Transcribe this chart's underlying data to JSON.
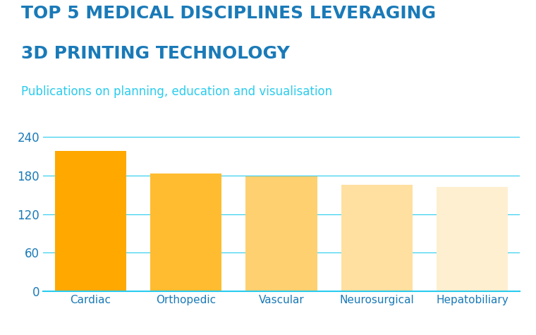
{
  "title_line1": "TOP 5 MEDICAL DISCIPLINES LEVERAGING",
  "title_line2": "3D PRINTING TECHNOLOGY",
  "subtitle": "Publications on planning, education and visualisation",
  "categories": [
    "Cardiac",
    "Orthopedic",
    "Vascular",
    "Neurosurgical",
    "Hepatobiliary"
  ],
  "values": [
    218,
    183,
    179,
    166,
    162
  ],
  "bar_colors": [
    "#FFA800",
    "#FFBC30",
    "#FFD070",
    "#FFE0A0",
    "#FDEFD0"
  ],
  "title_color": "#1A7AB8",
  "subtitle_color": "#29CCEE",
  "axis_color": "#29CCEE",
  "tick_color": "#1A7AB8",
  "label_color": "#1A7AB8",
  "background_color": "#FFFFFF",
  "ylim": [
    0,
    260
  ],
  "yticks": [
    0,
    60,
    120,
    180,
    240
  ],
  "grid_color": "#29CCEE",
  "title_fontsize": 18,
  "subtitle_fontsize": 12,
  "tick_fontsize": 12,
  "label_fontsize": 11
}
